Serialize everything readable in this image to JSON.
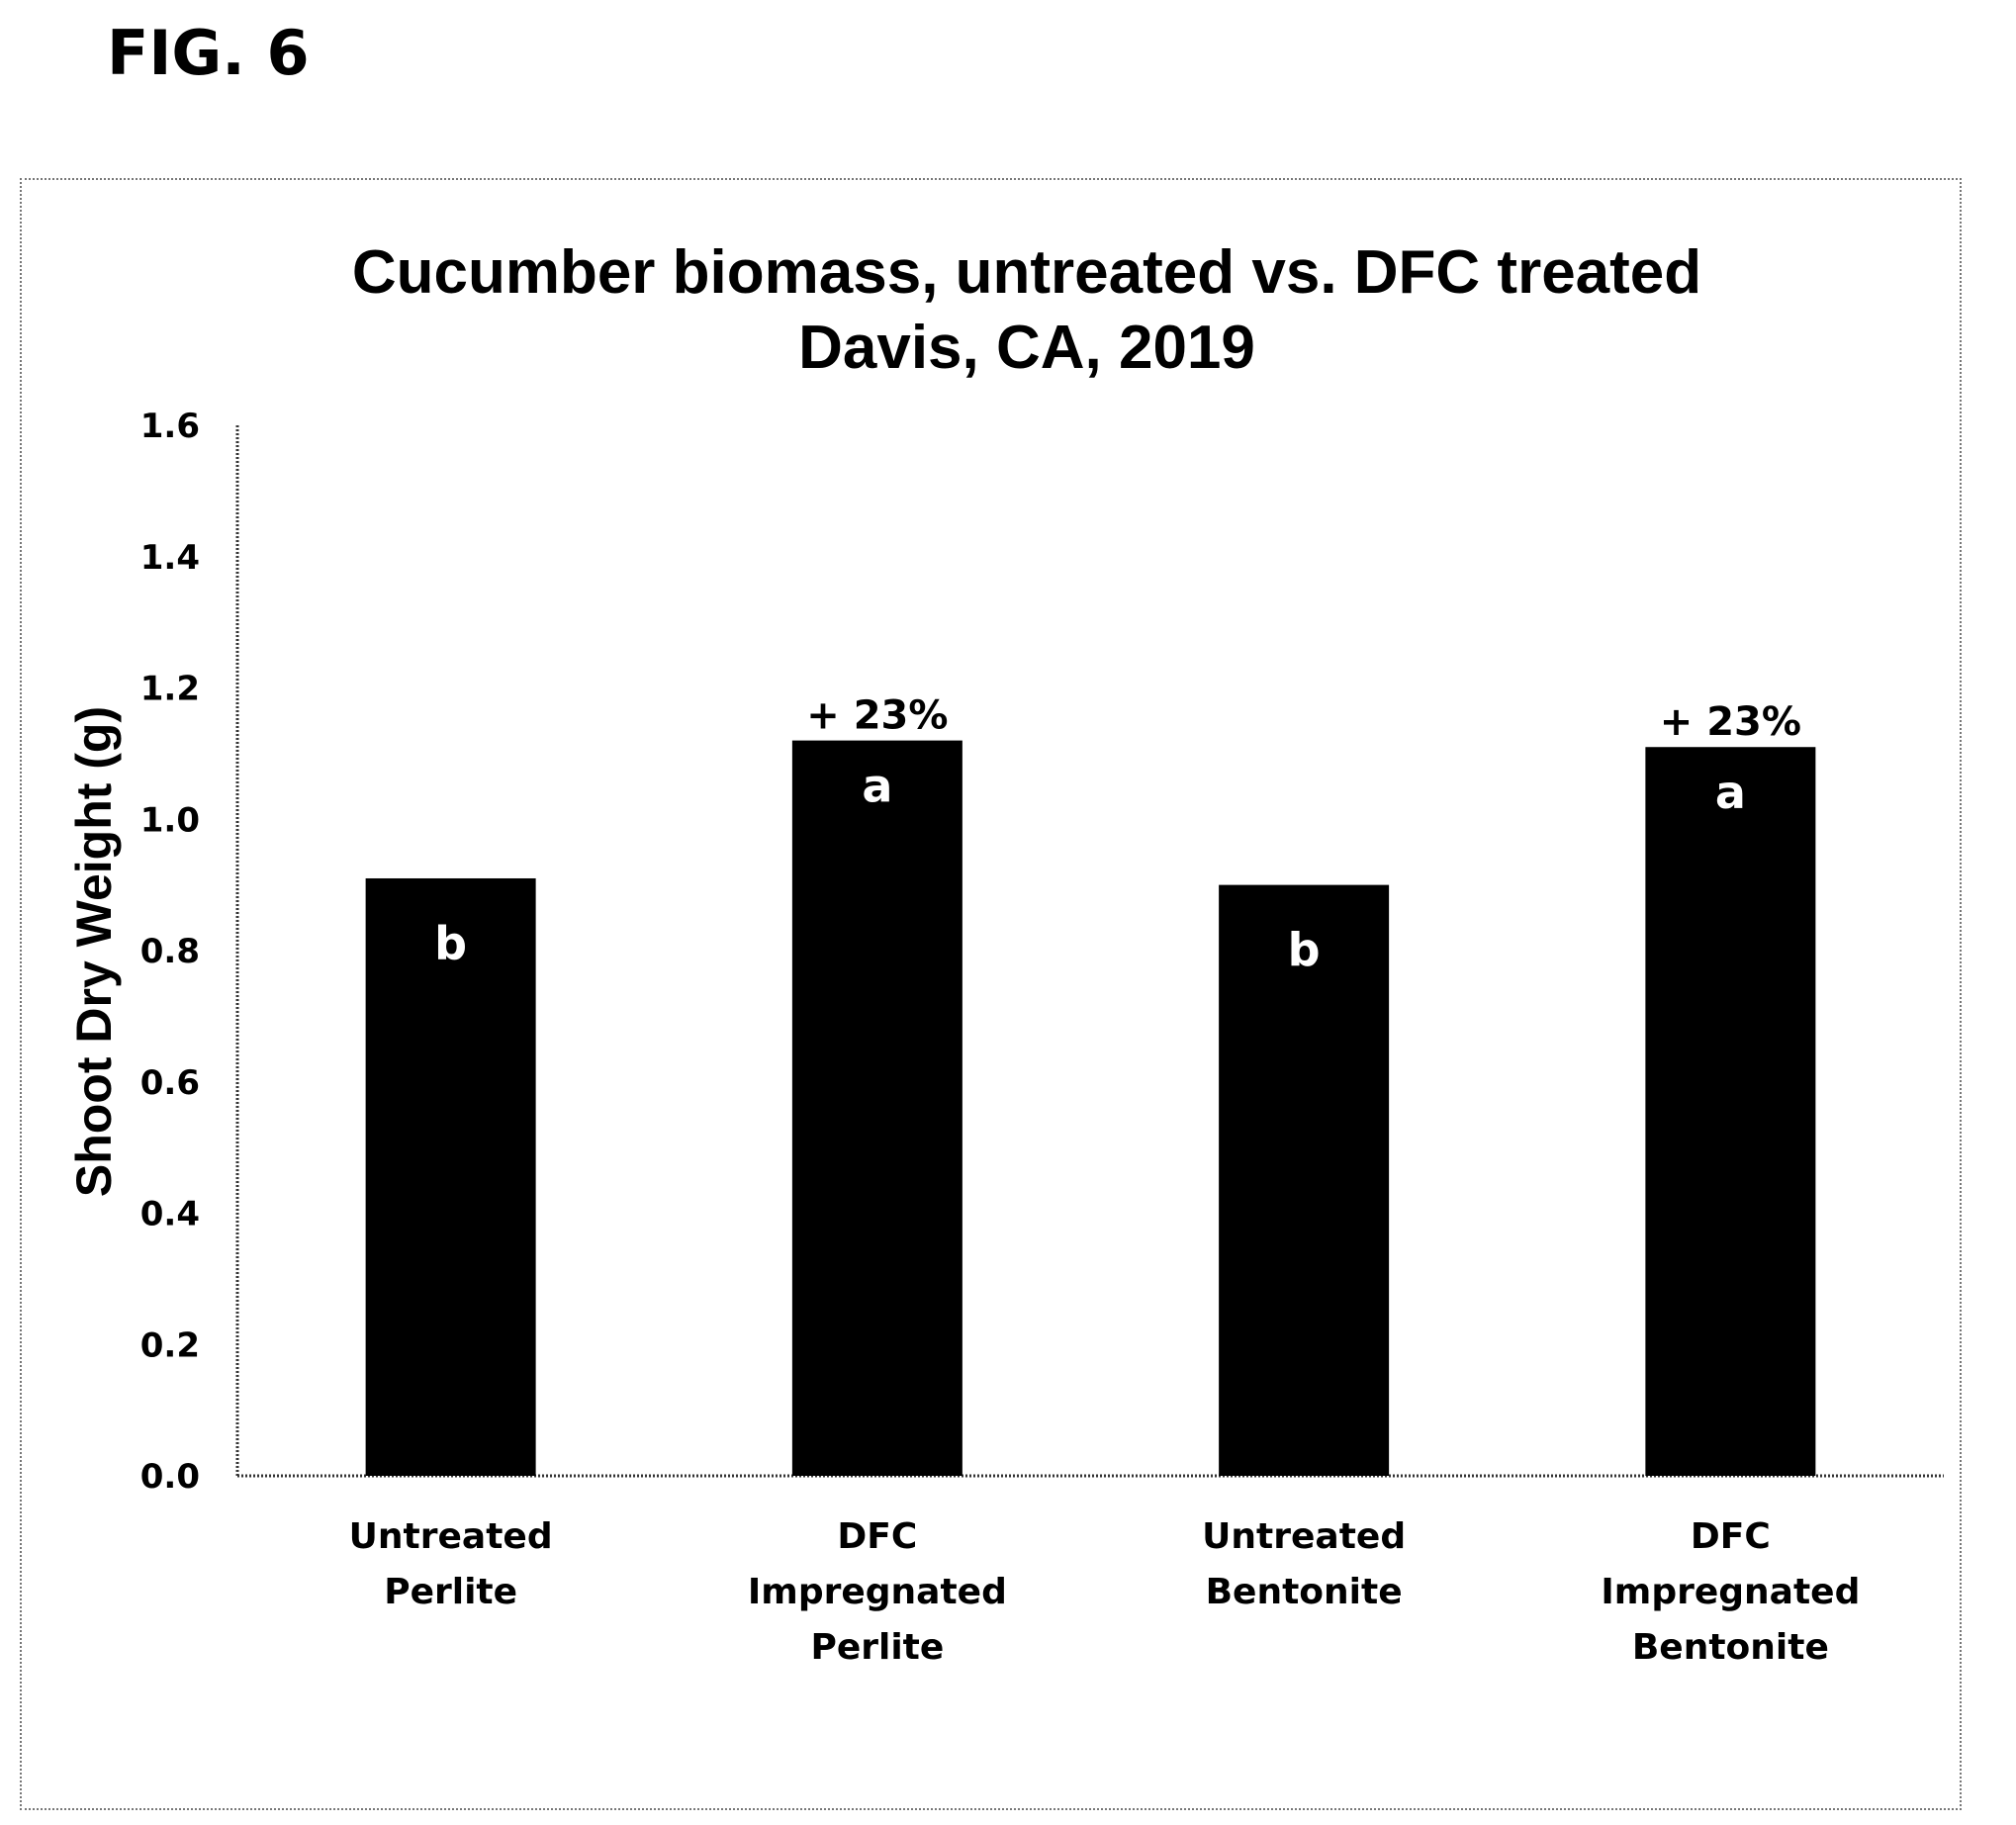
{
  "figure_label": "FIG. 6",
  "chart_data": {
    "type": "bar",
    "title": [
      "Cucumber biomass, untreated vs. DFC treated",
      "Davis, CA, 2019"
    ],
    "xlabel": "",
    "ylabel": "Shoot Dry Weight (g)",
    "ylim": [
      0,
      1.6
    ],
    "yticks": [
      "0.0",
      "0.2",
      "0.4",
      "0.6",
      "0.8",
      "1.0",
      "1.2",
      "1.4",
      "1.6"
    ],
    "grid": false,
    "legend": "none",
    "bar_color": "#000000",
    "categories": [
      [
        "Untreated",
        "Perlite"
      ],
      [
        "DFC",
        "Impregnated",
        "Perlite"
      ],
      [
        "Untreated",
        "Bentonite"
      ],
      [
        "DFC",
        "Impregnated",
        "Bentonite"
      ]
    ],
    "values": [
      0.91,
      1.12,
      0.9,
      1.11
    ],
    "significance_letters": [
      "b",
      "a",
      "b",
      "a"
    ],
    "annotations": [
      "",
      "+ 23%",
      "",
      "+ 23%"
    ]
  }
}
